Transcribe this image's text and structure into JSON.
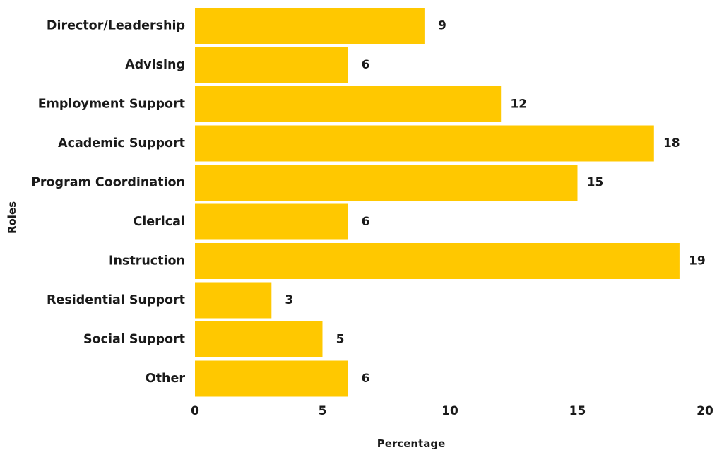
{
  "chart_data": {
    "type": "bar",
    "orientation": "horizontal",
    "categories": [
      "Director/Leadership",
      "Advising",
      "Employment Support",
      "Academic Support",
      "Program Coordination",
      "Clerical",
      "Instruction",
      "Residential Support",
      "Social Support",
      "Other"
    ],
    "values": [
      9,
      6,
      12,
      18,
      15,
      6,
      19,
      3,
      5,
      6
    ],
    "value_labels": [
      "9",
      "6",
      "12",
      "18",
      "15",
      "6",
      "19",
      "3",
      "5",
      "6"
    ],
    "xlabel": "Percentage",
    "ylabel": "Roles",
    "xlim": [
      0,
      20
    ],
    "xticks": [
      "0",
      "5",
      "10",
      "15",
      "20"
    ],
    "grid": false,
    "bar_color": "#FFC800"
  }
}
